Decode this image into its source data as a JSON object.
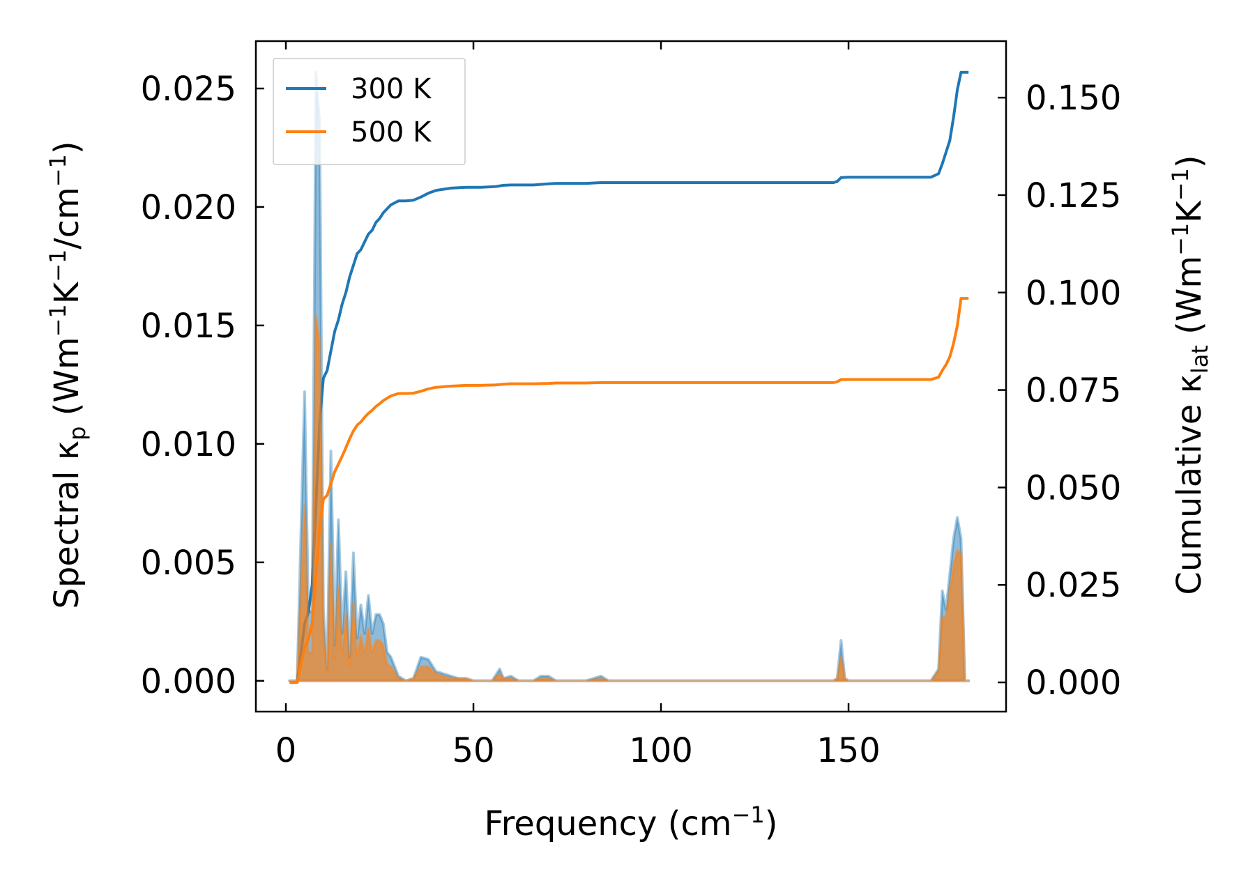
{
  "chart_data": {
    "type": "line",
    "xlabel": "Frequency (cm",
    "xlabel_sup": "−1",
    "xlabel_end": ")",
    "ylabel_left": "Spectral κ",
    "ylabel_left_sub": "p",
    "ylabel_left_units": " (Wm",
    "ylabel_left_sup1": "−1",
    "ylabel_left_k": "K",
    "ylabel_left_sup2": "−1",
    "ylabel_left_end": "/cm",
    "ylabel_left_sup3": "−1",
    "ylabel_left_close": ")",
    "ylabel_right": "Cumulative κ",
    "ylabel_right_sub": "lat",
    "ylabel_right_units": " (Wm",
    "ylabel_right_sup1": "−1",
    "ylabel_right_k": "K",
    "ylabel_right_sup2": "−1",
    "ylabel_right_close": ")",
    "xlim": [
      -8,
      192
    ],
    "ylim_left": [
      -0.0013,
      0.027
    ],
    "ylim_right": [
      -0.0075,
      0.1645
    ],
    "xticks": [
      0,
      50,
      100,
      150
    ],
    "xtick_labels": [
      "0",
      "50",
      "100",
      "150"
    ],
    "yticks_left": [
      0.0,
      0.005,
      0.01,
      0.015,
      0.02,
      0.025
    ],
    "ytick_labels_left": [
      "0.000",
      "0.005",
      "0.010",
      "0.015",
      "0.020",
      "0.025"
    ],
    "yticks_right": [
      0.0,
      0.025,
      0.05,
      0.075,
      0.1,
      0.125,
      0.15
    ],
    "ytick_labels_right": [
      "0.000",
      "0.025",
      "0.050",
      "0.075",
      "0.100",
      "0.125",
      "0.150"
    ],
    "legend_position": "top-left",
    "grid": false,
    "series": [
      {
        "name": "300 K",
        "color": "#1f77b4",
        "spectral": [
          [
            1,
            0
          ],
          [
            3,
            0
          ],
          [
            5,
            0.0122
          ],
          [
            6,
            0.003
          ],
          [
            7,
            0.0029
          ],
          [
            8,
            0.0257
          ],
          [
            9,
            0.0235
          ],
          [
            10,
            0.003
          ],
          [
            11,
            0.0005
          ],
          [
            12,
            0.0097
          ],
          [
            13,
            0.0015
          ],
          [
            14,
            0.0068
          ],
          [
            15,
            0.002
          ],
          [
            16,
            0.0046
          ],
          [
            17,
            0.001
          ],
          [
            18,
            0.0054
          ],
          [
            19,
            0.0018
          ],
          [
            20,
            0.0032
          ],
          [
            21,
            0.002
          ],
          [
            22,
            0.0036
          ],
          [
            23,
            0.002
          ],
          [
            24,
            0.0028
          ],
          [
            25,
            0.0028
          ],
          [
            26,
            0.0024
          ],
          [
            27,
            0.0012
          ],
          [
            28,
            0.001
          ],
          [
            30,
            0.0002
          ],
          [
            32,
            0
          ],
          [
            34,
            0.0001
          ],
          [
            36,
            0.001
          ],
          [
            38,
            0.0009
          ],
          [
            40,
            0.0004
          ],
          [
            42,
            0.0003
          ],
          [
            44,
            0.0002
          ],
          [
            46,
            0.0001
          ],
          [
            48,
            0.0001
          ],
          [
            50,
            0
          ],
          [
            55,
            0
          ],
          [
            57,
            0.0005
          ],
          [
            58,
            0.0001
          ],
          [
            60,
            0.0002
          ],
          [
            62,
            0
          ],
          [
            66,
            0
          ],
          [
            68,
            0.0002
          ],
          [
            70,
            0.0002
          ],
          [
            72,
            0
          ],
          [
            80,
            0
          ],
          [
            84,
            0.0002
          ],
          [
            86,
            0
          ],
          [
            100,
            0
          ],
          [
            146,
            0
          ],
          [
            147,
            0.0001
          ],
          [
            148,
            0.0017
          ],
          [
            149,
            0.0001
          ],
          [
            150,
            0
          ],
          [
            172,
            0
          ],
          [
            174,
            0.0005
          ],
          [
            175,
            0.0038
          ],
          [
            176,
            0.003
          ],
          [
            178,
            0.006
          ],
          [
            179,
            0.0069
          ],
          [
            180,
            0.006
          ],
          [
            181,
            0
          ],
          [
            182,
            0
          ]
        ],
        "cumulative": [
          [
            1,
            0
          ],
          [
            3,
            0
          ],
          [
            5,
            0.015
          ],
          [
            6,
            0.018
          ],
          [
            7,
            0.025
          ],
          [
            8,
            0.045
          ],
          [
            9,
            0.067
          ],
          [
            10,
            0.078
          ],
          [
            11,
            0.08
          ],
          [
            12,
            0.085
          ],
          [
            13,
            0.09
          ],
          [
            14,
            0.093
          ],
          [
            15,
            0.097
          ],
          [
            16,
            0.1
          ],
          [
            17,
            0.104
          ],
          [
            18,
            0.107
          ],
          [
            19,
            0.11
          ],
          [
            20,
            0.111
          ],
          [
            21,
            0.113
          ],
          [
            22,
            0.115
          ],
          [
            23,
            0.116
          ],
          [
            24,
            0.118
          ],
          [
            25,
            0.119
          ],
          [
            26,
            0.1205
          ],
          [
            27,
            0.1215
          ],
          [
            28,
            0.1225
          ],
          [
            30,
            0.1235
          ],
          [
            32,
            0.1235
          ],
          [
            34,
            0.1237
          ],
          [
            36,
            0.1245
          ],
          [
            38,
            0.1255
          ],
          [
            40,
            0.1262
          ],
          [
            44,
            0.1268
          ],
          [
            48,
            0.127
          ],
          [
            52,
            0.127
          ],
          [
            56,
            0.1272
          ],
          [
            58,
            0.1275
          ],
          [
            60,
            0.1276
          ],
          [
            66,
            0.1276
          ],
          [
            70,
            0.1279
          ],
          [
            72,
            0.128
          ],
          [
            80,
            0.128
          ],
          [
            84,
            0.1282
          ],
          [
            86,
            0.1282
          ],
          [
            100,
            0.1282
          ],
          [
            146,
            0.1282
          ],
          [
            147,
            0.1285
          ],
          [
            148,
            0.1295
          ],
          [
            150,
            0.1296
          ],
          [
            172,
            0.1296
          ],
          [
            174,
            0.1305
          ],
          [
            175,
            0.133
          ],
          [
            176,
            0.136
          ],
          [
            177,
            0.139
          ],
          [
            178,
            0.145
          ],
          [
            179,
            0.152
          ],
          [
            180,
            0.1565
          ],
          [
            182,
            0.1565
          ]
        ]
      },
      {
        "name": "500 K",
        "color": "#ff7f0e",
        "spectral": [
          [
            1,
            0
          ],
          [
            3,
            0
          ],
          [
            5,
            0.0074
          ],
          [
            6,
            0.0012
          ],
          [
            7,
            0.0012
          ],
          [
            8,
            0.0154
          ],
          [
            9,
            0.0143
          ],
          [
            10,
            0.0018
          ],
          [
            11,
            0.0004
          ],
          [
            12,
            0.0058
          ],
          [
            13,
            0.0009
          ],
          [
            14,
            0.004
          ],
          [
            15,
            0.0012
          ],
          [
            16,
            0.0028
          ],
          [
            17,
            0.0006
          ],
          [
            18,
            0.0033
          ],
          [
            19,
            0.0011
          ],
          [
            20,
            0.0019
          ],
          [
            21,
            0.0012
          ],
          [
            22,
            0.0022
          ],
          [
            23,
            0.0012
          ],
          [
            24,
            0.0017
          ],
          [
            25,
            0.0017
          ],
          [
            26,
            0.0015
          ],
          [
            27,
            0.0007
          ],
          [
            28,
            0.0006
          ],
          [
            30,
            0.0001
          ],
          [
            32,
            0
          ],
          [
            34,
            0.0001
          ],
          [
            36,
            0.0006
          ],
          [
            38,
            0.0006
          ],
          [
            40,
            0.0003
          ],
          [
            42,
            0.0002
          ],
          [
            44,
            0.0001
          ],
          [
            46,
            0.0001
          ],
          [
            48,
            0.0001
          ],
          [
            50,
            0
          ],
          [
            55,
            0
          ],
          [
            57,
            0.0003
          ],
          [
            58,
            0.0001
          ],
          [
            60,
            0.0001
          ],
          [
            62,
            0
          ],
          [
            66,
            0
          ],
          [
            68,
            0.0001
          ],
          [
            70,
            0.0001
          ],
          [
            72,
            0
          ],
          [
            80,
            0
          ],
          [
            84,
            0.0001
          ],
          [
            86,
            0
          ],
          [
            100,
            0
          ],
          [
            146,
            0
          ],
          [
            147,
            0.0001
          ],
          [
            148,
            0.001
          ],
          [
            149,
            0.0001
          ],
          [
            150,
            0
          ],
          [
            172,
            0
          ],
          [
            174,
            0.0004
          ],
          [
            175,
            0.0027
          ],
          [
            176,
            0.0027
          ],
          [
            178,
            0.0049
          ],
          [
            179,
            0.0055
          ],
          [
            180,
            0.0054
          ],
          [
            181,
            0
          ],
          [
            182,
            0
          ]
        ],
        "cumulative": [
          [
            1,
            0
          ],
          [
            3,
            0
          ],
          [
            5,
            0.009
          ],
          [
            6,
            0.011
          ],
          [
            7,
            0.015
          ],
          [
            8,
            0.027
          ],
          [
            9,
            0.04
          ],
          [
            10,
            0.047
          ],
          [
            11,
            0.048
          ],
          [
            12,
            0.051
          ],
          [
            13,
            0.054
          ],
          [
            14,
            0.056
          ],
          [
            15,
            0.058
          ],
          [
            16,
            0.0602
          ],
          [
            17,
            0.0625
          ],
          [
            18,
            0.0645
          ],
          [
            19,
            0.066
          ],
          [
            20,
            0.0668
          ],
          [
            21,
            0.068
          ],
          [
            22,
            0.069
          ],
          [
            23,
            0.0698
          ],
          [
            24,
            0.0708
          ],
          [
            25,
            0.0715
          ],
          [
            26,
            0.0723
          ],
          [
            27,
            0.0729
          ],
          [
            28,
            0.0735
          ],
          [
            30,
            0.0741
          ],
          [
            32,
            0.0741
          ],
          [
            34,
            0.0742
          ],
          [
            36,
            0.0747
          ],
          [
            38,
            0.0753
          ],
          [
            40,
            0.0757
          ],
          [
            44,
            0.076
          ],
          [
            48,
            0.0762
          ],
          [
            52,
            0.0762
          ],
          [
            56,
            0.0763
          ],
          [
            58,
            0.0765
          ],
          [
            60,
            0.0766
          ],
          [
            66,
            0.0766
          ],
          [
            70,
            0.0767
          ],
          [
            72,
            0.0768
          ],
          [
            80,
            0.0768
          ],
          [
            84,
            0.0769
          ],
          [
            86,
            0.0769
          ],
          [
            100,
            0.0769
          ],
          [
            146,
            0.0769
          ],
          [
            147,
            0.0771
          ],
          [
            148,
            0.0777
          ],
          [
            150,
            0.0777
          ],
          [
            172,
            0.0777
          ],
          [
            174,
            0.0783
          ],
          [
            175,
            0.08
          ],
          [
            176,
            0.0815
          ],
          [
            177,
            0.0835
          ],
          [
            178,
            0.087
          ],
          [
            179,
            0.0915
          ],
          [
            180,
            0.0985
          ],
          [
            182,
            0.0985
          ]
        ]
      }
    ]
  }
}
